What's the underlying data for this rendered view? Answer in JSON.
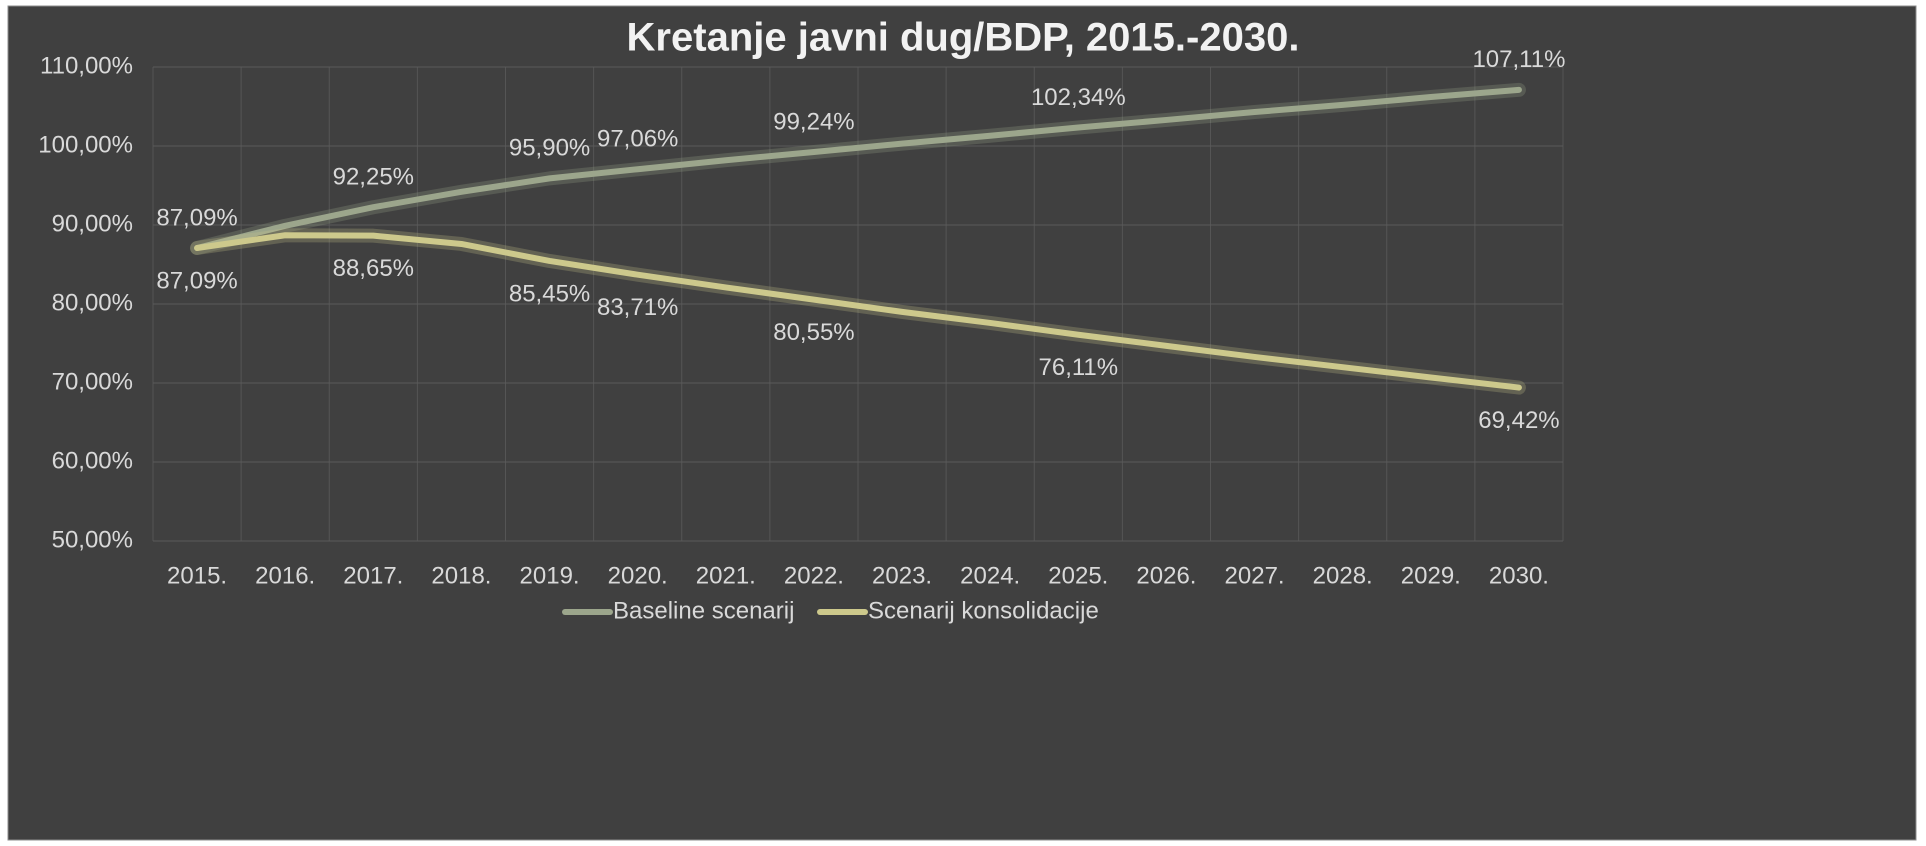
{
  "chart_data": {
    "type": "line",
    "title": "Kretanje javni dug/BDP, 2015.-2030.",
    "categories": [
      "2015.",
      "2016.",
      "2017.",
      "2018.",
      "2019.",
      "2020.",
      "2021.",
      "2022.",
      "2023.",
      "2024.",
      "2025.",
      "2026.",
      "2027.",
      "2028.",
      "2029.",
      "2030."
    ],
    "series": [
      {
        "name": "Baseline scenarij",
        "color": "#9ca68c",
        "values": [
          87.09,
          89.9,
          92.25,
          94.2,
          95.9,
          97.06,
          98.2,
          99.24,
          100.3,
          101.3,
          102.34,
          103.3,
          104.3,
          105.2,
          106.2,
          107.11
        ],
        "value_labels": [
          "87,09%",
          null,
          "92,25%",
          null,
          "95,90%",
          "97,06%",
          null,
          "99,24%",
          null,
          null,
          "102,34%",
          null,
          null,
          null,
          null,
          "107,11%"
        ]
      },
      {
        "name": "Scenarij konsolidacije",
        "color": "#cdc98c",
        "values": [
          87.09,
          88.7,
          88.65,
          87.6,
          85.45,
          83.71,
          82.1,
          80.55,
          79.0,
          77.6,
          76.11,
          74.7,
          73.3,
          72.0,
          70.7,
          69.42
        ],
        "value_labels": [
          "87,09%",
          null,
          "88,65%",
          null,
          "85,45%",
          "83,71%",
          null,
          "80,55%",
          null,
          null,
          "76,11%",
          null,
          null,
          null,
          null,
          "69,42%"
        ]
      }
    ],
    "ylim": [
      50,
      110
    ],
    "yticks": [
      {
        "value": 50,
        "label": "50,00%"
      },
      {
        "value": 60,
        "label": "60,00%"
      },
      {
        "value": 70,
        "label": "70,00%"
      },
      {
        "value": 80,
        "label": "80,00%"
      },
      {
        "value": 90,
        "label": "90,00%"
      },
      {
        "value": 100,
        "label": "100,00%"
      },
      {
        "value": 110,
        "label": "110,00%"
      }
    ],
    "grid": true,
    "legend": "bottom"
  }
}
